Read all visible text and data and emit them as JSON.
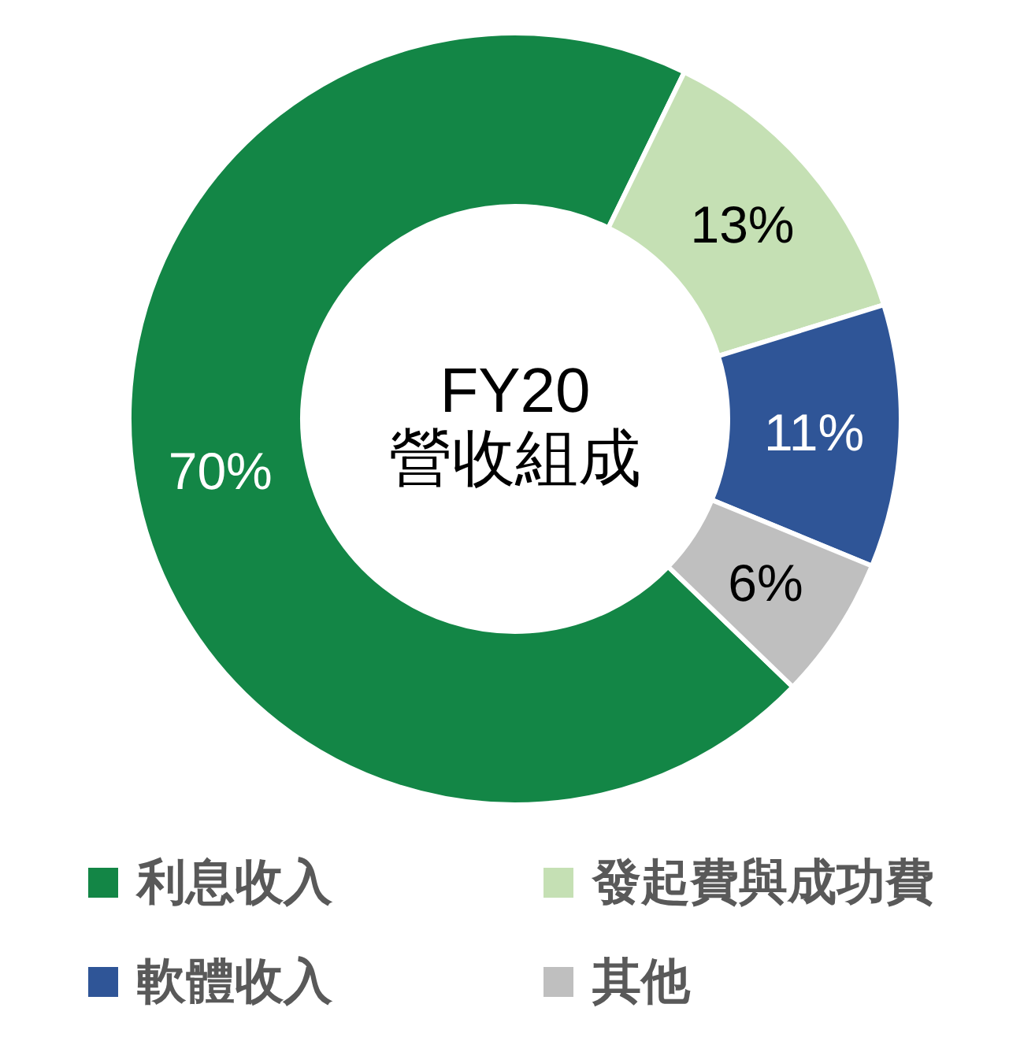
{
  "chart_data": {
    "type": "donut",
    "title": "FY20 營收組成",
    "categories": [
      "利息收入",
      "發起費與成功費",
      "軟體收入",
      "其他"
    ],
    "values": [
      70,
      13,
      11,
      6
    ],
    "colors": [
      "#138646",
      "#c5e0b4",
      "#2f5597",
      "#bfbfbf"
    ],
    "value_labels": [
      "70%",
      "13%",
      "11%",
      "6%"
    ],
    "legend": "bottom"
  }
}
